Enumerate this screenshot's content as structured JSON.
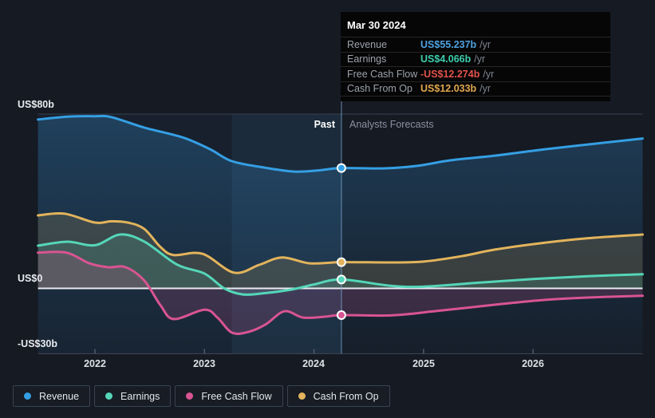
{
  "labels": {
    "past": "Past",
    "forecast": "Analysts Forecasts"
  },
  "y_axis": [
    {
      "label": "US$80b",
      "value": 80
    },
    {
      "label": "US$0",
      "value": 0
    },
    {
      "label": "-US$30b",
      "value": -30
    }
  ],
  "x_axis": [
    "2022",
    "2023",
    "2024",
    "2025",
    "2026"
  ],
  "tooltip": {
    "date": "Mar 30 2024",
    "rows": [
      {
        "label": "Revenue",
        "value": "US$55.237b",
        "suffix": "/yr",
        "color": "#4fa2e0"
      },
      {
        "label": "Earnings",
        "value": "US$4.066b",
        "suffix": "/yr",
        "color": "#3dcfac"
      },
      {
        "label": "Free Cash Flow",
        "value": "-US$12.274b",
        "suffix": "/yr",
        "color": "#e2524b"
      },
      {
        "label": "Cash From Op",
        "value": "US$12.033b",
        "suffix": "/yr",
        "color": "#e2a84e"
      }
    ]
  },
  "legend": [
    {
      "label": "Revenue",
      "color": "#359fe3"
    },
    {
      "label": "Earnings",
      "color": "#55d6b8"
    },
    {
      "label": "Free Cash Flow",
      "color": "#d95492"
    },
    {
      "label": "Cash From Op",
      "color": "#e3b45c"
    }
  ],
  "chart_data": {
    "type": "area",
    "title": "Past and forecast Revenue, Earnings, Free Cash Flow and Cash From Op (US$ billions per year)",
    "x_unit": "year",
    "x_range": [
      2021.48,
      2027.0
    ],
    "ylim": [
      -30,
      80
    ],
    "divider_x": 2024.25,
    "divider_date": "Mar 30 2024",
    "highlight_band": [
      2023.25,
      2024.25
    ],
    "grid": "horizontal-only",
    "legend_position": "bottom-left",
    "series": [
      {
        "name": "Revenue",
        "color": "#359fe3",
        "fill_top": "rgba(52,140,205,0.30)",
        "fill_bottom": "rgba(52,140,205,0.04)",
        "baseline": "bottom",
        "points": [
          [
            2021.48,
            77.5
          ],
          [
            2021.75,
            78.8
          ],
          [
            2022.0,
            79.0
          ],
          [
            2022.15,
            78.6
          ],
          [
            2022.45,
            73.8
          ],
          [
            2022.8,
            69.3
          ],
          [
            2023.05,
            63.9
          ],
          [
            2023.25,
            58.4
          ],
          [
            2023.55,
            55.4
          ],
          [
            2023.82,
            53.6
          ],
          [
            2024.05,
            54.2
          ],
          [
            2024.25,
            55.237
          ],
          [
            2024.65,
            55.1
          ],
          [
            2024.95,
            56.3
          ],
          [
            2025.25,
            58.8
          ],
          [
            2025.65,
            60.9
          ],
          [
            2026.1,
            63.8
          ],
          [
            2026.55,
            66.3
          ],
          [
            2027.0,
            68.8
          ]
        ]
      },
      {
        "name": "Cash From Op",
        "color": "#e3b45c",
        "fill_top": "rgba(227,180,92,0.16)",
        "fill_bottom": "rgba(227,180,92,0.16)",
        "baseline": "zero",
        "points": [
          [
            2021.48,
            33.5
          ],
          [
            2021.72,
            34.3
          ],
          [
            2022.0,
            30.2
          ],
          [
            2022.15,
            30.8
          ],
          [
            2022.3,
            30.2
          ],
          [
            2022.45,
            27.3
          ],
          [
            2022.6,
            18.9
          ],
          [
            2022.72,
            15.3
          ],
          [
            2022.98,
            15.9
          ],
          [
            2023.27,
            7.2
          ],
          [
            2023.5,
            10.8
          ],
          [
            2023.71,
            14.2
          ],
          [
            2023.96,
            11.5
          ],
          [
            2024.25,
            12.033
          ],
          [
            2024.7,
            11.9
          ],
          [
            2025.0,
            12.3
          ],
          [
            2025.35,
            14.8
          ],
          [
            2025.65,
            17.8
          ],
          [
            2026.1,
            20.9
          ],
          [
            2026.5,
            23.0
          ],
          [
            2027.0,
            24.7
          ]
        ]
      },
      {
        "name": "Earnings",
        "color": "#55d6b8",
        "fill_top": "rgba(85,214,184,0.16)",
        "fill_bottom": "rgba(85,214,184,0.16)",
        "baseline": "zero",
        "points": [
          [
            2021.48,
            19.6
          ],
          [
            2021.75,
            21.4
          ],
          [
            2022.0,
            19.8
          ],
          [
            2022.23,
            24.7
          ],
          [
            2022.45,
            21.5
          ],
          [
            2022.75,
            10.9
          ],
          [
            2023.0,
            6.8
          ],
          [
            2023.18,
            0.0
          ],
          [
            2023.35,
            -2.8
          ],
          [
            2023.55,
            -2.2
          ],
          [
            2023.8,
            -0.5
          ],
          [
            2024.0,
            1.8
          ],
          [
            2024.25,
            4.066
          ],
          [
            2024.7,
            1.2
          ],
          [
            2025.0,
            0.8
          ],
          [
            2025.5,
            2.6
          ],
          [
            2026.0,
            4.3
          ],
          [
            2026.5,
            5.6
          ],
          [
            2027.0,
            6.5
          ]
        ]
      },
      {
        "name": "Free Cash Flow",
        "color": "#d95492",
        "fill_top": "rgba(217,84,146,0.18)",
        "fill_bottom": "rgba(217,84,146,0.18)",
        "baseline": "zero",
        "points": [
          [
            2021.48,
            16.4
          ],
          [
            2021.74,
            16.4
          ],
          [
            2021.95,
            11.5
          ],
          [
            2022.12,
            9.7
          ],
          [
            2022.28,
            9.7
          ],
          [
            2022.45,
            3.6
          ],
          [
            2022.6,
            -7.9
          ],
          [
            2022.72,
            -14.1
          ],
          [
            2023.0,
            -9.8
          ],
          [
            2023.12,
            -13.5
          ],
          [
            2023.25,
            -20.3
          ],
          [
            2023.4,
            -20.0
          ],
          [
            2023.56,
            -16.5
          ],
          [
            2023.73,
            -10.5
          ],
          [
            2023.9,
            -13.4
          ],
          [
            2024.1,
            -13.0
          ],
          [
            2024.25,
            -12.274
          ],
          [
            2024.7,
            -12.4
          ],
          [
            2025.1,
            -10.5
          ],
          [
            2025.65,
            -7.5
          ],
          [
            2026.1,
            -5.3
          ],
          [
            2026.5,
            -4.2
          ],
          [
            2027.0,
            -3.4
          ]
        ]
      }
    ],
    "marker_values_at_divider": {
      "Revenue": 55.237,
      "Earnings": 4.066,
      "Free Cash Flow": -12.274,
      "Cash From Op": 12.033
    }
  }
}
